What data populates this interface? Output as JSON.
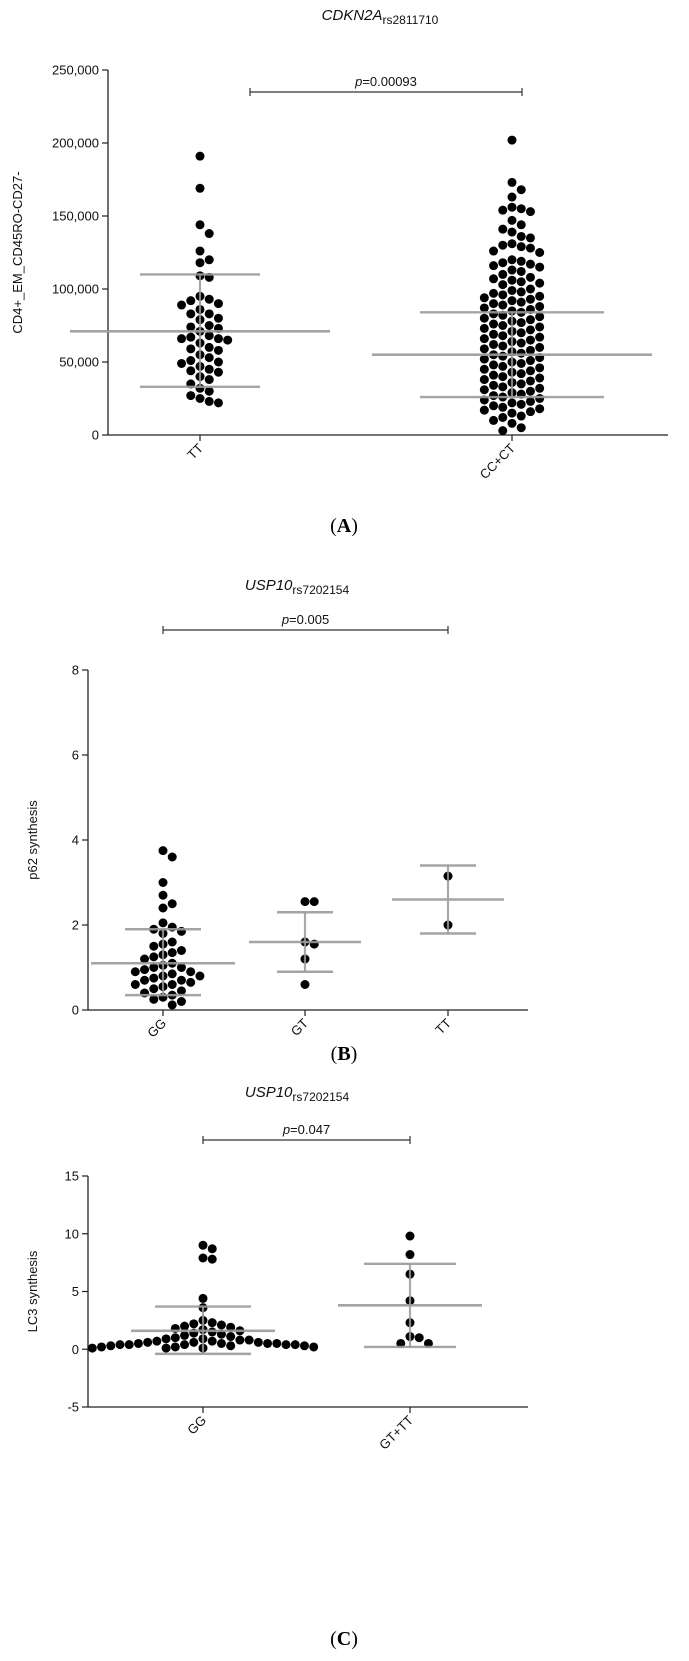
{
  "chart_data": [
    {
      "type": "scatter",
      "panel_label": "(A)",
      "title": "CDKN2A",
      "title_subscript": "rs2811710",
      "ylabel": "CD4+_EM_CD45RO-CD27-",
      "xlabel": "",
      "ylim": [
        0,
        250000
      ],
      "yticks": [
        "0",
        "50,000",
        "100,000",
        "150,000",
        "200,000",
        "250,000"
      ],
      "ytick_values": [
        0,
        50000,
        100000,
        150000,
        200000,
        250000
      ],
      "categories": [
        "TT",
        "CC+CT"
      ],
      "p_value": {
        "text_prefix": "p",
        "text_suffix": "=0.00093",
        "from": "TT",
        "to": "CC+CT"
      },
      "summary": [
        {
          "category": "TT",
          "mean": 71000,
          "sd_low": 33000,
          "sd_high": 110000
        },
        {
          "category": "CC+CT",
          "mean": 55000,
          "sd_low": 26000,
          "sd_high": 84000
        }
      ],
      "series": [
        {
          "category": "TT",
          "values": [
            191000,
            169000,
            144000,
            138000,
            126000,
            120000,
            118000,
            109000,
            108000,
            95000,
            93000,
            92000,
            90000,
            89000,
            86000,
            83000,
            83000,
            80000,
            79000,
            75000,
            74000,
            73000,
            71000,
            68000,
            67000,
            66000,
            66000,
            65000,
            63000,
            60000,
            59000,
            58000,
            55000,
            53000,
            51000,
            50000,
            49000,
            47000,
            45000,
            44000,
            43000,
            40000,
            38000,
            35000,
            32000,
            30000,
            27000,
            25000,
            23000,
            22000
          ]
        },
        {
          "category": "CC+CT",
          "values": [
            202000,
            173000,
            168000,
            163000,
            156000,
            155000,
            154000,
            153000,
            147000,
            144000,
            141000,
            139000,
            136000,
            135000,
            131000,
            130000,
            129000,
            128000,
            126000,
            125000,
            120000,
            119000,
            118000,
            117000,
            116000,
            115000,
            113000,
            112000,
            110000,
            108000,
            107000,
            106000,
            105000,
            104000,
            103000,
            100000,
            99000,
            98000,
            97000,
            96000,
            95000,
            94000,
            93000,
            92000,
            91000,
            90000,
            89000,
            88000,
            87000,
            86000,
            85000,
            84000,
            83000,
            82000,
            81000,
            80000,
            79000,
            78000,
            77000,
            76000,
            75000,
            74000,
            73000,
            72000,
            71000,
            70000,
            69000,
            68000,
            67000,
            66000,
            65000,
            64000,
            63000,
            62000,
            61000,
            60000,
            59000,
            58000,
            57000,
            56000,
            55000,
            54000,
            53000,
            52000,
            51000,
            50000,
            49000,
            48000,
            47000,
            46000,
            45000,
            44000,
            43000,
            42000,
            41000,
            40000,
            39000,
            38000,
            37000,
            36000,
            35000,
            34000,
            33000,
            32000,
            31000,
            30000,
            29000,
            28000,
            27000,
            26000,
            25000,
            24000,
            23000,
            22000,
            21000,
            20000,
            19000,
            18000,
            17000,
            16000,
            15000,
            13000,
            12000,
            10000,
            8000,
            5000,
            3000
          ]
        }
      ]
    },
    {
      "type": "scatter",
      "panel_label": "(B)",
      "title": "USP10",
      "title_subscript": "rs7202154",
      "ylabel": "p62 synthesis",
      "xlabel": "",
      "ylim": [
        0,
        8
      ],
      "yticks": [
        "0",
        "2",
        "4",
        "6",
        "8"
      ],
      "ytick_values": [
        0,
        2,
        4,
        6,
        8
      ],
      "categories": [
        "GG",
        "GT",
        "TT"
      ],
      "p_value": {
        "text_prefix": "p",
        "text_suffix": "=0.005",
        "from": "GG",
        "to": "TT"
      },
      "summary": [
        {
          "category": "GG",
          "mean": 1.1,
          "sd_low": 0.35,
          "sd_high": 1.9
        },
        {
          "category": "GT",
          "mean": 1.6,
          "sd_low": 0.9,
          "sd_high": 2.3
        },
        {
          "category": "TT",
          "mean": 2.6,
          "sd_low": 1.8,
          "sd_high": 3.4
        }
      ],
      "series": [
        {
          "category": "GG",
          "values": [
            3.75,
            3.6,
            3.0,
            2.7,
            2.5,
            2.4,
            2.05,
            1.95,
            1.9,
            1.85,
            1.8,
            1.6,
            1.55,
            1.5,
            1.4,
            1.35,
            1.3,
            1.25,
            1.2,
            1.1,
            1.05,
            1.0,
            1.0,
            0.95,
            0.9,
            0.9,
            0.85,
            0.8,
            0.8,
            0.75,
            0.7,
            0.7,
            0.65,
            0.6,
            0.6,
            0.55,
            0.5,
            0.45,
            0.4,
            0.35,
            0.3,
            0.25,
            0.2,
            0.12
          ]
        },
        {
          "category": "GT",
          "values": [
            2.55,
            2.55,
            1.6,
            1.55,
            1.2,
            0.6
          ]
        },
        {
          "category": "TT",
          "values": [
            3.15,
            2.0
          ]
        }
      ]
    },
    {
      "type": "scatter",
      "panel_label": "(C)",
      "title": "USP10",
      "title_subscript": "rs7202154",
      "ylabel": "LC3 synthesis",
      "xlabel": "",
      "ylim": [
        -5,
        15
      ],
      "yticks": [
        "-5",
        "0",
        "5",
        "10",
        "15"
      ],
      "ytick_values": [
        -5,
        0,
        5,
        10,
        15
      ],
      "categories": [
        "GG",
        "GT+TT"
      ],
      "p_value": {
        "text_prefix": "p",
        "text_suffix": "=0.047",
        "from": "GG",
        "to": "GT+TT"
      },
      "summary": [
        {
          "category": "GG",
          "mean": 1.6,
          "sd_low": -0.4,
          "sd_high": 3.7
        },
        {
          "category": "GT+TT",
          "mean": 3.8,
          "sd_low": 0.2,
          "sd_high": 7.4
        }
      ],
      "series": [
        {
          "category": "GG",
          "values": [
            9.0,
            8.7,
            7.9,
            7.8,
            4.4,
            3.6,
            2.5,
            2.3,
            2.2,
            2.1,
            2.0,
            1.9,
            1.8,
            1.7,
            1.6,
            1.5,
            1.4,
            1.3,
            1.2,
            1.1,
            1.0,
            0.9,
            0.9,
            0.8,
            0.8,
            0.7,
            0.7,
            0.6,
            0.6,
            0.6,
            0.5,
            0.5,
            0.5,
            0.5,
            0.4,
            0.4,
            0.4,
            0.4,
            0.4,
            0.3,
            0.3,
            0.3,
            0.2,
            0.2,
            0.2,
            0.1,
            0.1,
            0.1
          ]
        },
        {
          "category": "GT+TT",
          "values": [
            9.8,
            8.2,
            6.5,
            4.2,
            2.3,
            1.1,
            1.0,
            0.5,
            0.5
          ]
        }
      ]
    }
  ]
}
